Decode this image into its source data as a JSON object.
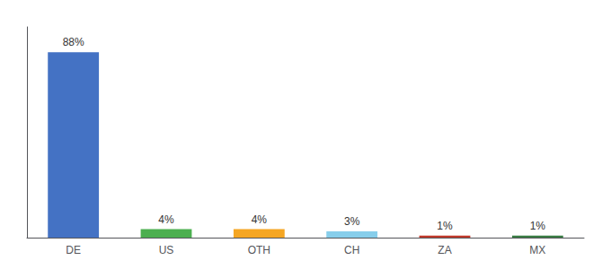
{
  "chart_data": {
    "type": "bar",
    "categories": [
      "DE",
      "US",
      "OTH",
      "CH",
      "ZA",
      "MX"
    ],
    "values": [
      88,
      4,
      4,
      3,
      1,
      1
    ],
    "value_labels": [
      "88%",
      "4%",
      "4%",
      "3%",
      "1%",
      "1%"
    ],
    "colors": [
      "#4472c4",
      "#4caf50",
      "#f5a623",
      "#87ceeb",
      "#c0392b",
      "#3a7d44"
    ],
    "ylim": [
      0,
      100
    ],
    "grid": false,
    "data_labels": true,
    "tick_labels": "x"
  }
}
